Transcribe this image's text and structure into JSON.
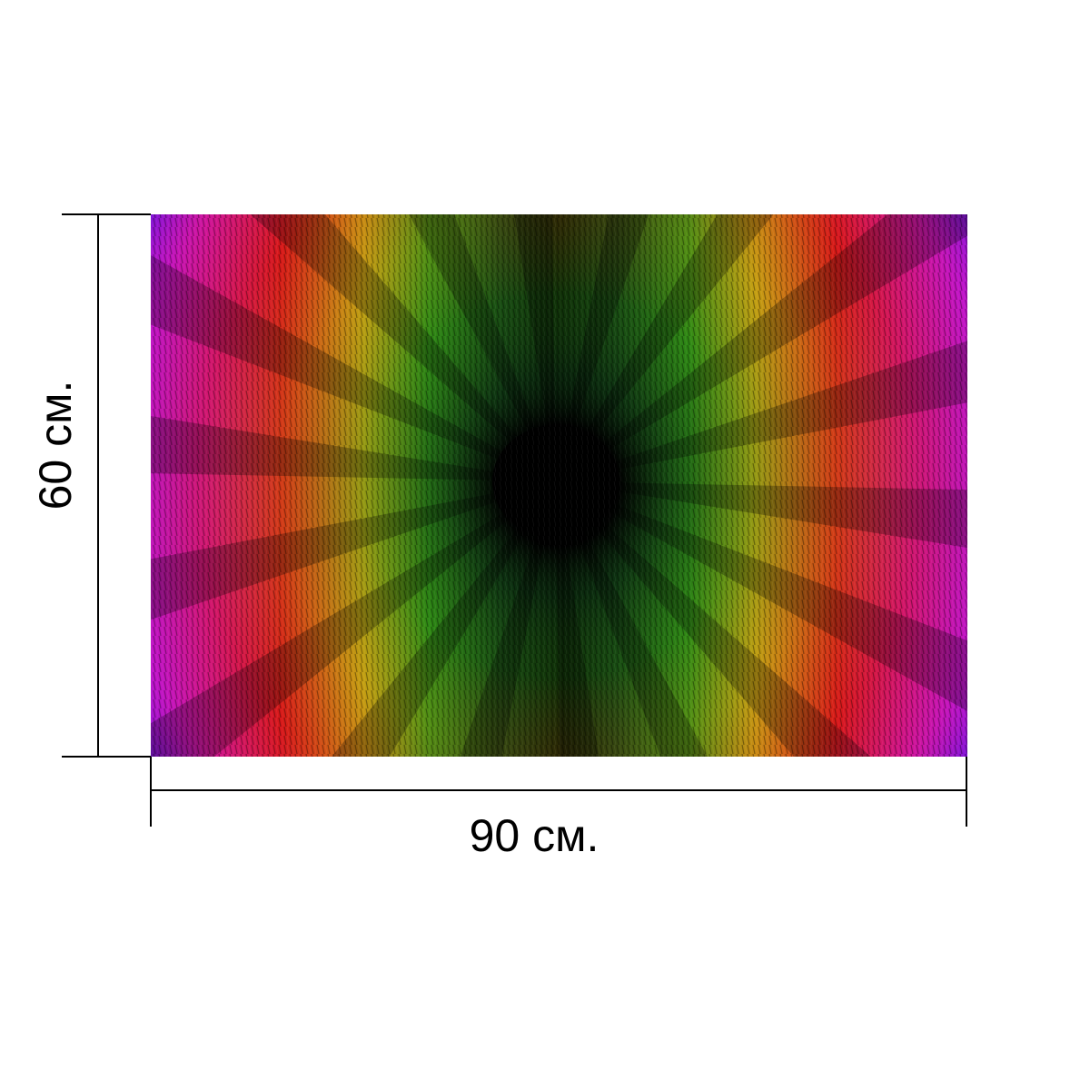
{
  "dimensions": {
    "width_label": "90 см.",
    "height_label": "60 см."
  },
  "artwork": {
    "description_colors": {
      "center": "#000000",
      "inner": "#1f7a12",
      "mid": "#c7b010",
      "outer": "#d81414",
      "edge": "#d414c8",
      "corner": "#2a10e8"
    }
  },
  "colors": {
    "line": "#000000",
    "background": "#ffffff"
  }
}
